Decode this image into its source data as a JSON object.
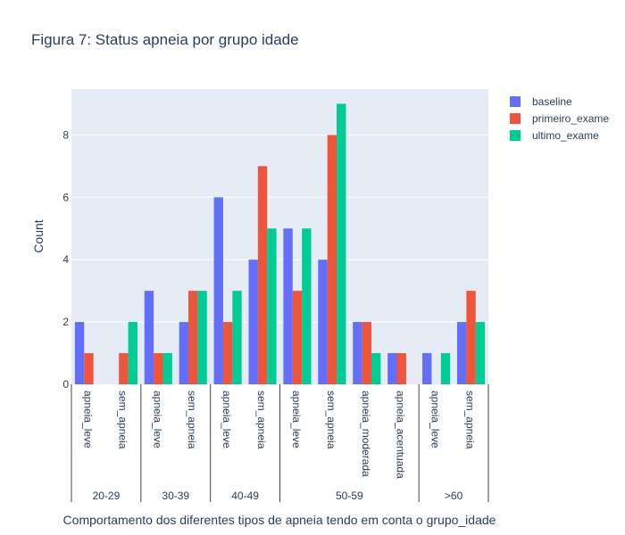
{
  "chart_data": {
    "type": "bar",
    "title": "Figura 7: Status apneia por grupo idade",
    "xlabel": "Comportamento dos diferentes tipos de apneia tendo em conta o grupo_idade",
    "ylabel": "Count",
    "ylim": [
      0,
      9.47
    ],
    "yticks": [
      0,
      2,
      4,
      6,
      8
    ],
    "grid": true,
    "legend_position": "top-right",
    "groups": [
      {
        "label": "20-29",
        "categories": [
          "apneia_leve",
          "sem_apneia"
        ]
      },
      {
        "label": "30-39",
        "categories": [
          "apneia_leve",
          "sem_apneia"
        ]
      },
      {
        "label": "40-49",
        "categories": [
          "apneia_leve",
          "sem_apneia"
        ]
      },
      {
        "label": "50-59",
        "categories": [
          "apneia_leve",
          "sem_apneia",
          "apneia_moderada",
          "apneia_acentuada"
        ]
      },
      {
        "label": ">60",
        "categories": [
          "apneia_leve",
          "sem_apneia"
        ]
      }
    ],
    "series": [
      {
        "name": "baseline",
        "color": "#636efa",
        "values": [
          2,
          0,
          3,
          2,
          6,
          4,
          5,
          4,
          2,
          1,
          1,
          2
        ]
      },
      {
        "name": "primeiro_exame",
        "color": "#ef553b",
        "values": [
          1,
          1,
          1,
          3,
          2,
          7,
          3,
          8,
          2,
          1,
          0,
          3
        ]
      },
      {
        "name": "ultimo_exame",
        "color": "#00cc96",
        "values": [
          0,
          2,
          1,
          3,
          3,
          5,
          5,
          9,
          1,
          0,
          1,
          2
        ]
      }
    ]
  }
}
